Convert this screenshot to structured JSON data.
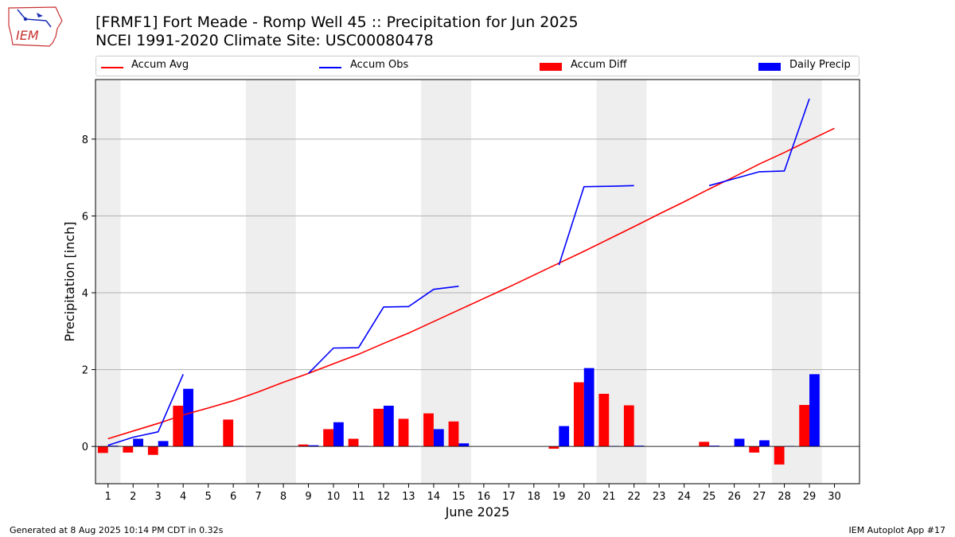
{
  "header": {
    "title_line1": "[FRMF1] Fort Meade - Romp Well 45 :: Precipitation for Jun 2025",
    "title_line2": "NCEI 1991-2020 Climate Site: USC00080478",
    "logo_text": "IEM"
  },
  "footer": {
    "left": "Generated at 8 Aug 2025 10:14 PM CDT in 0.32s",
    "right": "IEM Autoplot App #17"
  },
  "colors": {
    "avg": "#ff0000",
    "obs": "#0000ff",
    "diff": "#ff0000",
    "daily": "#0000ff",
    "weekend": "#eeeeee",
    "grid": "#b0b0b0"
  },
  "chart_data": {
    "type": "bar",
    "xlabel": "June 2025",
    "ylabel": "Precipitation [inch]",
    "xlim": [
      0.5,
      31.0
    ],
    "ylim": [
      -0.97,
      9.55
    ],
    "y_ticks": [
      0,
      2,
      4,
      6,
      8
    ],
    "x_ticks": [
      1,
      2,
      3,
      4,
      5,
      6,
      7,
      8,
      9,
      10,
      11,
      12,
      13,
      14,
      15,
      16,
      17,
      18,
      19,
      20,
      21,
      22,
      23,
      24,
      25,
      26,
      27,
      28,
      29,
      30
    ],
    "grid": "horizontal",
    "legend_placement": "top",
    "shaded_day_ranges": [
      [
        0.5,
        1.5
      ],
      [
        6.5,
        8.5
      ],
      [
        13.5,
        15.5
      ],
      [
        20.5,
        22.5
      ],
      [
        27.5,
        29.5
      ]
    ],
    "series": [
      {
        "name": "Accum Avg",
        "kind": "line",
        "x": [
          1,
          2,
          3,
          4,
          5,
          6,
          7,
          8,
          9,
          10,
          11,
          12,
          13,
          14,
          15,
          16,
          17,
          18,
          19,
          20,
          21,
          22,
          23,
          24,
          25,
          26,
          27,
          28,
          29,
          30
        ],
        "values": [
          0.2,
          0.4,
          0.6,
          0.82,
          1.0,
          1.19,
          1.42,
          1.67,
          1.9,
          2.15,
          2.4,
          2.68,
          2.95,
          3.25,
          3.55,
          3.85,
          4.15,
          4.46,
          4.77,
          5.08,
          5.4,
          5.72,
          6.05,
          6.37,
          6.7,
          7.02,
          7.35,
          7.65,
          7.97,
          8.28
        ]
      },
      {
        "name": "Accum Obs",
        "kind": "line",
        "x": [
          1,
          2,
          3,
          4,
          null,
          9,
          10,
          11,
          12,
          13,
          14,
          15,
          null,
          19,
          20,
          21,
          22,
          null,
          25,
          26,
          27,
          28,
          29
        ],
        "values": [
          0.03,
          0.24,
          0.38,
          1.88,
          null,
          1.9,
          2.56,
          2.57,
          3.63,
          3.64,
          4.09,
          4.17,
          null,
          4.72,
          6.76,
          6.77,
          6.79,
          null,
          6.79,
          6.97,
          7.15,
          7.17,
          9.05
        ]
      },
      {
        "name": "Accum Diff",
        "kind": "bar",
        "x": [
          1,
          2,
          3,
          4,
          6,
          9,
          10,
          11,
          12,
          13,
          14,
          15,
          19,
          20,
          21,
          22,
          25,
          27,
          28,
          29
        ],
        "values": [
          -0.17,
          -0.16,
          -0.22,
          1.06,
          0.7,
          0.05,
          0.45,
          0.2,
          0.98,
          0.72,
          0.86,
          0.65,
          -0.06,
          1.67,
          1.37,
          1.07,
          0.12,
          -0.16,
          -0.47,
          1.08
        ]
      },
      {
        "name": "Daily Precip",
        "kind": "bar",
        "x": [
          1,
          2,
          3,
          4,
          6,
          9,
          10,
          11,
          12,
          13,
          14,
          15,
          19,
          20,
          21,
          22,
          25,
          26,
          27,
          28,
          29
        ],
        "values": [
          0.02,
          0.2,
          0.14,
          1.5,
          0.01,
          0.03,
          0.63,
          0.01,
          1.06,
          0.01,
          0.45,
          0.08,
          0.53,
          2.04,
          0.01,
          0.02,
          0.02,
          0.2,
          0.16,
          0.01,
          1.88
        ]
      }
    ]
  }
}
